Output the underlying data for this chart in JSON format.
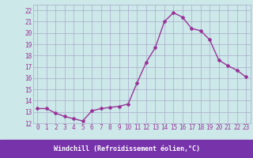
{
  "x": [
    0,
    1,
    2,
    3,
    4,
    5,
    6,
    7,
    8,
    9,
    10,
    11,
    12,
    13,
    14,
    15,
    16,
    17,
    18,
    19,
    20,
    21,
    22,
    23
  ],
  "y": [
    13.3,
    13.3,
    12.9,
    12.6,
    12.4,
    12.2,
    13.1,
    13.3,
    13.4,
    13.5,
    13.7,
    15.6,
    17.4,
    18.7,
    21.0,
    21.8,
    21.4,
    20.4,
    20.2,
    19.4,
    17.6,
    17.1,
    16.7,
    16.1
  ],
  "line_color": "#993399",
  "marker": "D",
  "marker_size": 2,
  "bg_color": "#cce8e8",
  "grid_color": "#aaaacc",
  "xlabel": "Windchill (Refroidissement éolien,°C)",
  "xlim": [
    -0.5,
    23.5
  ],
  "ylim": [
    12,
    22.5
  ],
  "yticks": [
    12,
    13,
    14,
    15,
    16,
    17,
    18,
    19,
    20,
    21,
    22
  ],
  "xticks": [
    0,
    1,
    2,
    3,
    4,
    5,
    6,
    7,
    8,
    9,
    10,
    11,
    12,
    13,
    14,
    15,
    16,
    17,
    18,
    19,
    20,
    21,
    22,
    23
  ],
  "tick_color": "#993399",
  "label_color": "#ffffff",
  "line_width": 1.0,
  "xlabel_bg_color": "#7733aa",
  "tick_fontsize": 5.5,
  "xlabel_fontsize": 6.0
}
